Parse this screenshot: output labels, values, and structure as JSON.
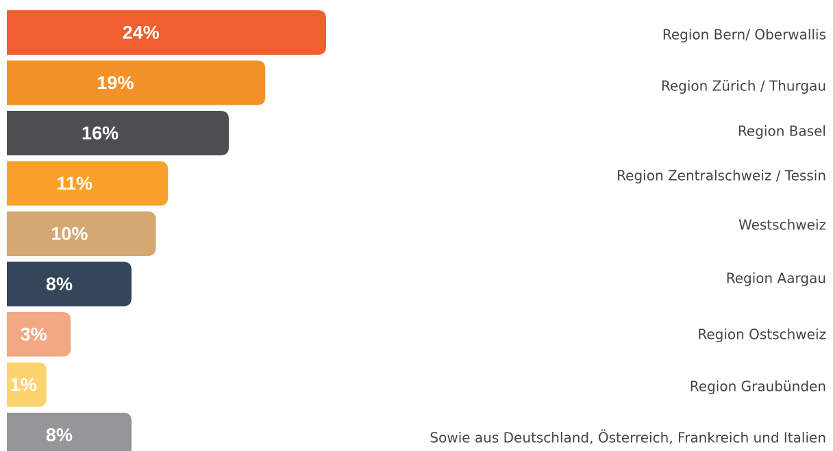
{
  "chart_data": {
    "type": "bar",
    "orientation": "horizontal",
    "categories": [
      "Region Bern/ Oberwallis",
      "Region Zürich / Thurgau",
      "Region Basel",
      "Region Zentralschweiz / Tessin",
      "Westschweiz",
      "Region Aargau",
      "Region Ostschweiz",
      "Region Graubünden",
      "Sowie aus Deutschland, Österreich, Frankreich und Italien"
    ],
    "values": [
      24,
      19,
      16,
      11,
      10,
      8,
      3,
      1,
      8
    ],
    "value_labels": [
      "24%",
      "19%",
      "16%",
      "11%",
      "10%",
      "8%",
      "3%",
      "1%",
      "8%"
    ],
    "colors": [
      "#f05f2f",
      "#f4922a",
      "#4d4e52",
      "#f9a12b",
      "#d4a870",
      "#34475a",
      "#f2a882",
      "#fdd36f",
      "#969698"
    ]
  }
}
